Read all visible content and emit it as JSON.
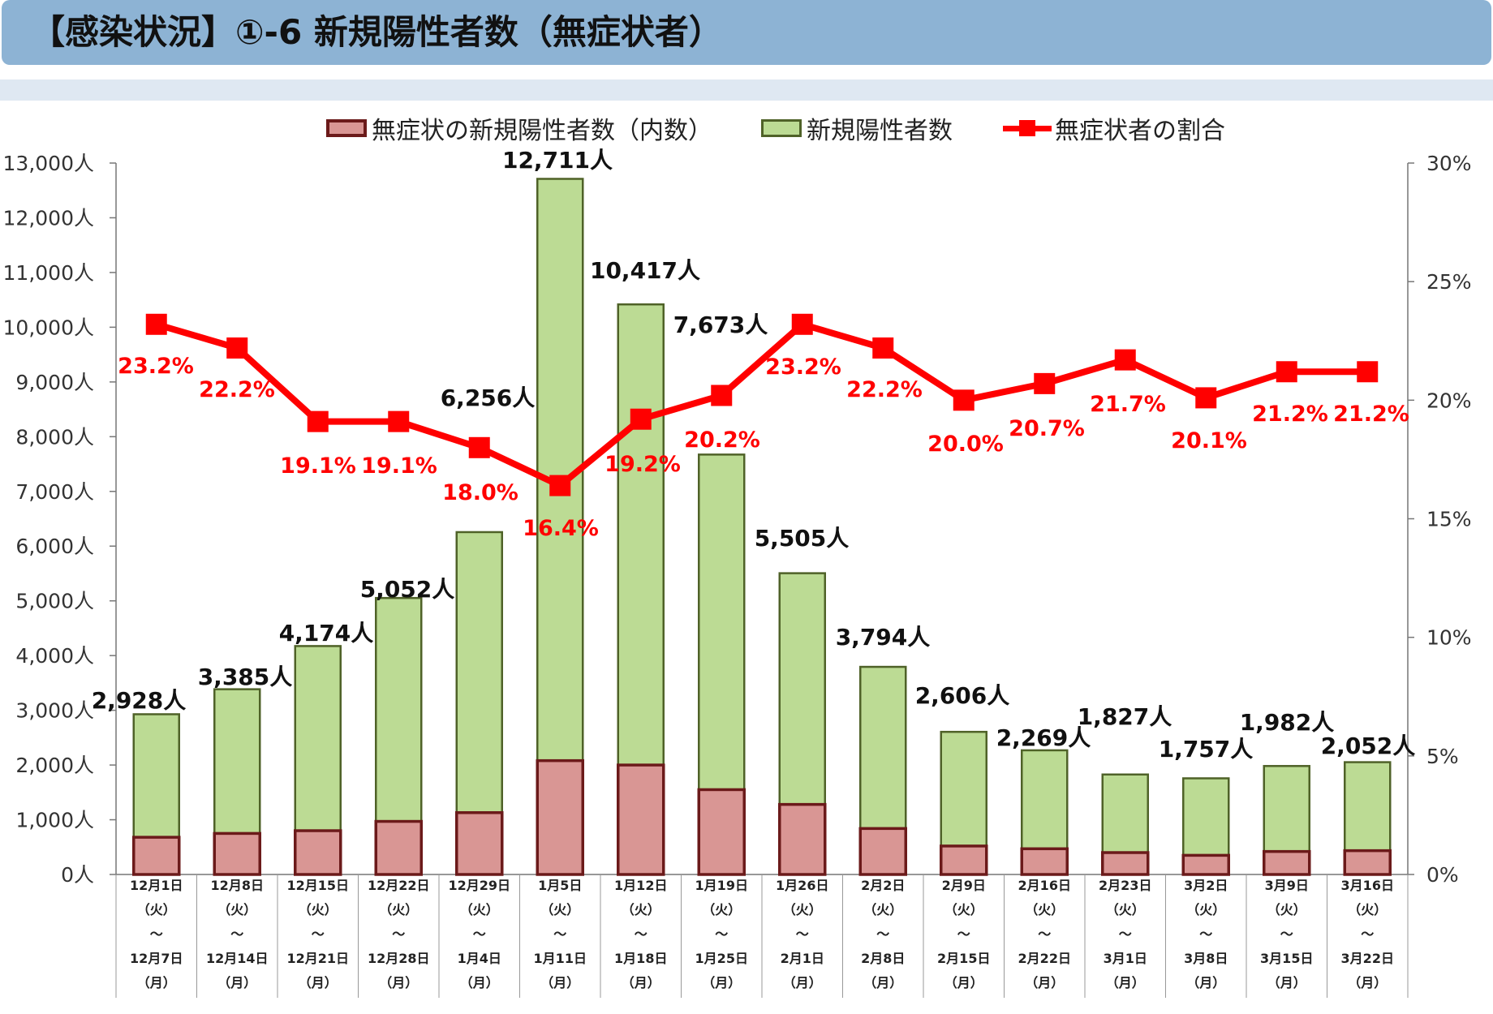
{
  "header": {
    "title": "【感染状況】①-6 新規陽性者数（無症状者）"
  },
  "legend": [
    {
      "key": "asym",
      "label": "無症状の新規陽性者数（内数）",
      "fill": "#d99694",
      "stroke": "#6b1a1a"
    },
    {
      "key": "total",
      "label": "新規陽性者数",
      "fill": "#bcdb94",
      "stroke": "#4f6228"
    },
    {
      "key": "ratio",
      "label": "無症状者の割合",
      "color": "#ff0000"
    }
  ],
  "chart_data": {
    "type": "bar",
    "stacked": true,
    "categories": [
      [
        "12月1日",
        "（火）",
        "～",
        "12月7日",
        "（月）"
      ],
      [
        "12月8日",
        "（火）",
        "～",
        "12月14日",
        "（月）"
      ],
      [
        "12月15日",
        "（火）",
        "～",
        "12月21日",
        "（月）"
      ],
      [
        "12月22日",
        "（火）",
        "～",
        "12月28日",
        "（月）"
      ],
      [
        "12月29日",
        "（火）",
        "～",
        "1月4日",
        "（月）"
      ],
      [
        "1月5日",
        "（火）",
        "～",
        "1月11日",
        "（月）"
      ],
      [
        "1月12日",
        "（火）",
        "～",
        "1月18日",
        "（月）"
      ],
      [
        "1月19日",
        "（火）",
        "～",
        "1月25日",
        "（月）"
      ],
      [
        "1月26日",
        "（火）",
        "～",
        "2月1日",
        "（月）"
      ],
      [
        "2月2日",
        "（火）",
        "～",
        "2月8日",
        "（月）"
      ],
      [
        "2月9日",
        "（火）",
        "～",
        "2月15日",
        "（月）"
      ],
      [
        "2月16日",
        "（火）",
        "～",
        "2月22日",
        "（月）"
      ],
      [
        "2月23日",
        "（火）",
        "～",
        "3月1日",
        "（月）"
      ],
      [
        "3月2日",
        "（火）",
        "～",
        "3月8日",
        "（月）"
      ],
      [
        "3月9日",
        "（火）",
        "～",
        "3月15日",
        "（月）"
      ],
      [
        "3月16日",
        "（火）",
        "～",
        "3月22日",
        "（月）"
      ]
    ],
    "series": [
      {
        "name": "新規陽性者数",
        "values": [
          2928,
          3385,
          4174,
          5052,
          6256,
          12711,
          10417,
          7673,
          5505,
          3794,
          2606,
          2269,
          1827,
          1757,
          1982,
          2052
        ]
      },
      {
        "name": "無症状の新規陽性者数（内数）",
        "values": [
          680,
          750,
          800,
          970,
          1130,
          2080,
          2000,
          1550,
          1280,
          840,
          520,
          470,
          400,
          350,
          420,
          435
        ]
      },
      {
        "name": "無症状者の割合",
        "axis": "right",
        "type": "line",
        "values": [
          23.2,
          22.2,
          19.1,
          19.1,
          18.0,
          16.4,
          19.2,
          20.2,
          23.2,
          22.2,
          20.0,
          20.7,
          21.7,
          20.1,
          21.2,
          21.2
        ]
      }
    ],
    "total_labels": [
      "2,928人",
      "3,385人",
      "4,174人",
      "5,052人",
      "6,256人",
      "12,711人",
      "10,417人",
      "7,673人",
      "5,505人",
      "3,794人",
      "2,606人",
      "2,269人",
      "1,827人",
      "1,757人",
      "1,982人",
      "2,052人"
    ],
    "ratio_labels": [
      "23.2%",
      "22.2%",
      "19.1%",
      "19.1%",
      "18.0%",
      "16.4%",
      "19.2%",
      "20.2%",
      "23.2%",
      "22.2%",
      "20.0%",
      "20.7%",
      "21.7%",
      "20.1%",
      "21.2%",
      "21.2%"
    ],
    "y_left": {
      "range": [
        0,
        13000
      ],
      "ticks": [
        0,
        1000,
        2000,
        3000,
        4000,
        5000,
        6000,
        7000,
        8000,
        9000,
        10000,
        11000,
        12000,
        13000
      ],
      "tick_labels": [
        "0人",
        "1,000人",
        "2,000人",
        "3,000人",
        "4,000人",
        "5,000人",
        "6,000人",
        "7,000人",
        "8,000人",
        "9,000人",
        "10,000人",
        "11,000人",
        "12,000人",
        "13,000人"
      ]
    },
    "y_right": {
      "range": [
        0,
        30
      ],
      "ticks": [
        0,
        5,
        10,
        15,
        20,
        25,
        30
      ],
      "tick_labels": [
        "0%",
        "5%",
        "10%",
        "15%",
        "20%",
        "25%",
        "30%"
      ]
    },
    "legend_position": "top",
    "grid": false,
    "colors": {
      "asym_fill": "#d99694",
      "asym_stroke": "#6b1a1a",
      "total_fill": "#bcdb94",
      "total_stroke": "#4f6228",
      "ratio": "#ff0000"
    }
  }
}
